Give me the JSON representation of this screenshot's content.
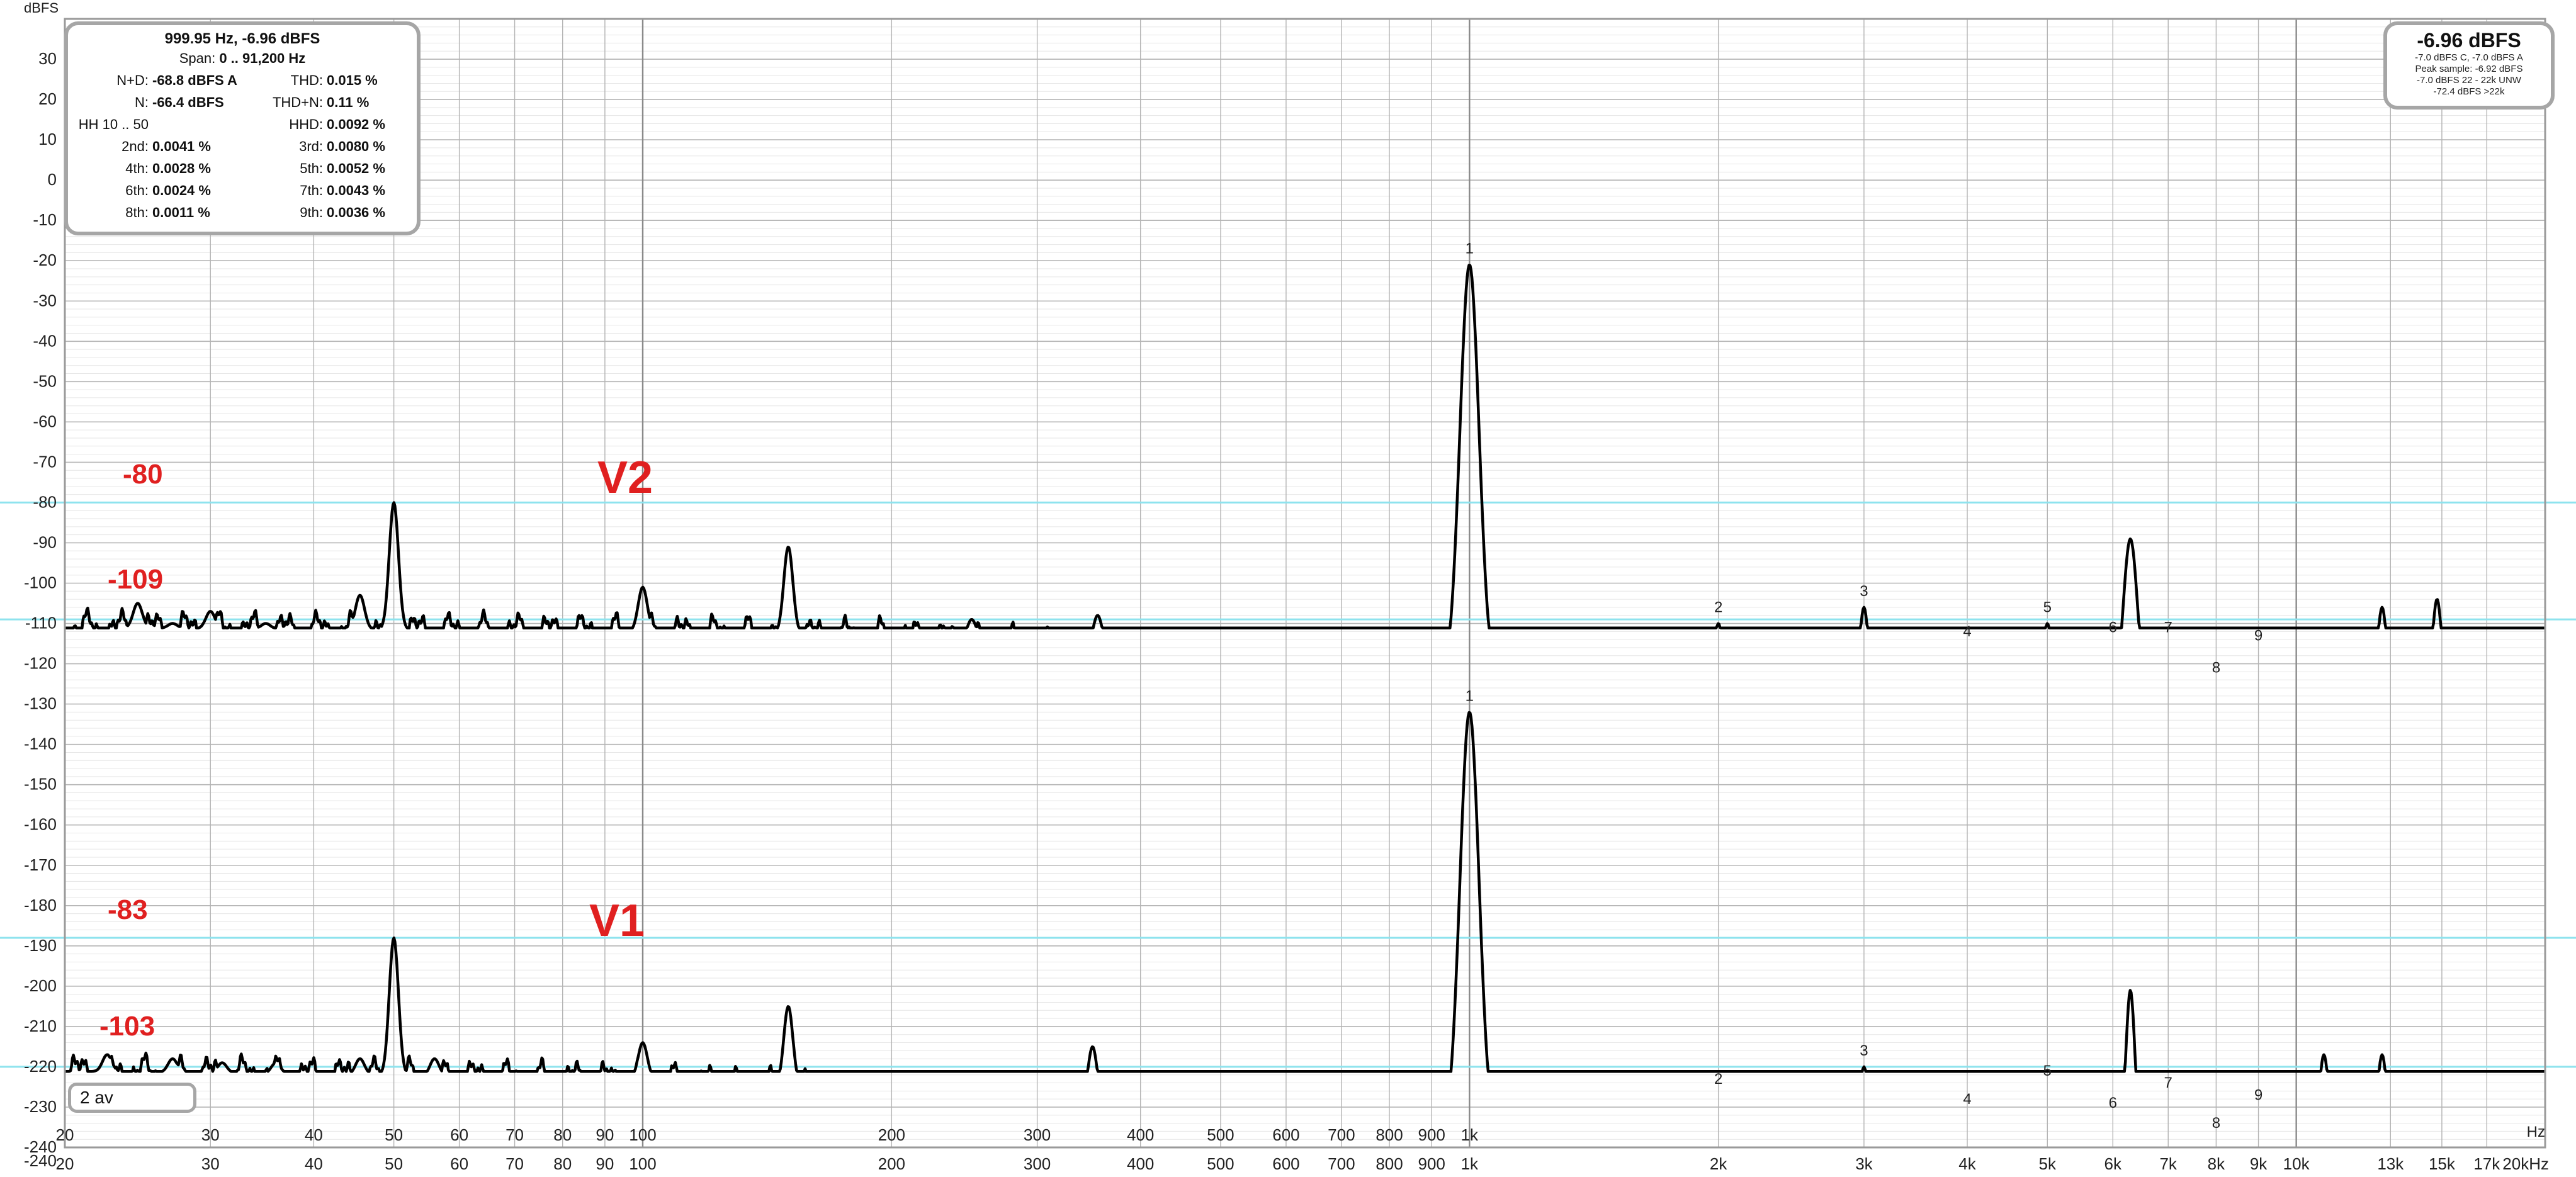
{
  "chart_data": {
    "type": "line",
    "xscale": "log",
    "xlim": [
      20,
      20000
    ],
    "ylim": [
      -240,
      40
    ],
    "y_unit_label": "dBFS",
    "x_unit_label": "Hz",
    "grid": true,
    "y_ticks": [
      30,
      20,
      10,
      0,
      -10,
      -20,
      -30,
      -40,
      -50,
      -60,
      -70,
      -80,
      -90,
      -100,
      -110,
      -120,
      -130,
      -140,
      -150,
      -160,
      -170,
      -180,
      -190,
      -200,
      -210,
      -220,
      -230,
      -240
    ],
    "x_ticks": [
      {
        "value": 20,
        "label": "20"
      },
      {
        "value": 30,
        "label": "30"
      },
      {
        "value": 40,
        "label": "40"
      },
      {
        "value": 50,
        "label": "50"
      },
      {
        "value": 60,
        "label": "60"
      },
      {
        "value": 70,
        "label": "70"
      },
      {
        "value": 80,
        "label": "80"
      },
      {
        "value": 90,
        "label": "90"
      },
      {
        "value": 100,
        "label": "100"
      },
      {
        "value": 200,
        "label": "200"
      },
      {
        "value": 300,
        "label": "300"
      },
      {
        "value": 400,
        "label": "400"
      },
      {
        "value": 500,
        "label": "500"
      },
      {
        "value": 600,
        "label": "600"
      },
      {
        "value": 700,
        "label": "700"
      },
      {
        "value": 800,
        "label": "800"
      },
      {
        "value": 900,
        "label": "900"
      },
      {
        "value": 1000,
        "label": "1k"
      },
      {
        "value": 2000,
        "label": "2k"
      },
      {
        "value": 3000,
        "label": "3k"
      },
      {
        "value": 4000,
        "label": "4k"
      },
      {
        "value": 5000,
        "label": "5k"
      },
      {
        "value": 6000,
        "label": "6k"
      },
      {
        "value": 7000,
        "label": "7k"
      },
      {
        "value": 8000,
        "label": "8k"
      },
      {
        "value": 9000,
        "label": "9k"
      },
      {
        "value": 10000,
        "label": "10k"
      },
      {
        "value": 13000,
        "label": "13k"
      },
      {
        "value": 15000,
        "label": "15k"
      },
      {
        "value": 17000,
        "label": "17k"
      },
      {
        "value": 20000,
        "label": "20kHz"
      }
    ],
    "reference_lines": [
      -80,
      -109,
      -188,
      -220
    ],
    "series": [
      {
        "name": "V2",
        "noise_floor": [
          [
            20,
            -111
          ],
          [
            100,
            -112
          ],
          [
            200,
            -113
          ],
          [
            300,
            -115
          ],
          [
            400,
            -117
          ],
          [
            500,
            -119
          ],
          [
            600,
            -120
          ],
          [
            700,
            -121
          ],
          [
            800,
            -122
          ],
          [
            900,
            -123
          ],
          [
            1000,
            -124
          ],
          [
            1500,
            -125
          ],
          [
            2000,
            -127
          ],
          [
            3000,
            -129
          ],
          [
            5000,
            -130
          ],
          [
            10000,
            -129
          ],
          [
            20000,
            -126
          ]
        ],
        "peaks": [
          [
            24.5,
            -105
          ],
          [
            27,
            -110
          ],
          [
            30,
            -107
          ],
          [
            35,
            -110
          ],
          [
            45.5,
            -103
          ],
          [
            50,
            -80
          ],
          [
            100,
            -101
          ],
          [
            150,
            -91
          ],
          [
            250,
            -109
          ],
          [
            355,
            -108
          ],
          [
            850,
            -119
          ],
          [
            1000,
            -21
          ],
          [
            2000,
            -110
          ],
          [
            3000,
            -106
          ],
          [
            4000,
            -116
          ],
          [
            5000,
            -110
          ],
          [
            6000,
            -115
          ],
          [
            6300,
            -89
          ],
          [
            7000,
            -115
          ],
          [
            8000,
            -125
          ],
          [
            9000,
            -117
          ],
          [
            11000,
            -120
          ],
          [
            12700,
            -106
          ],
          [
            14800,
            -104
          ],
          [
            17000,
            -121
          ],
          [
            19300,
            -116
          ]
        ],
        "peak_labels": [
          [
            1000,
            "1"
          ],
          [
            2000,
            "2"
          ],
          [
            3000,
            "3"
          ],
          [
            4000,
            "4"
          ],
          [
            5000,
            "5"
          ],
          [
            6000,
            "6"
          ],
          [
            7000,
            "7"
          ],
          [
            8000,
            "8"
          ],
          [
            9000,
            "9"
          ]
        ]
      },
      {
        "name": "V1",
        "noise_floor": [
          [
            20,
            -221
          ],
          [
            100,
            -223
          ],
          [
            200,
            -226
          ],
          [
            300,
            -228
          ],
          [
            400,
            -230
          ],
          [
            500,
            -232
          ],
          [
            600,
            -233
          ],
          [
            700,
            -234
          ],
          [
            800,
            -235
          ],
          [
            900,
            -236
          ],
          [
            1000,
            -237
          ],
          [
            1500,
            -238
          ],
          [
            2000,
            -240
          ],
          [
            3000,
            -242
          ],
          [
            5000,
            -242
          ],
          [
            10000,
            -238
          ],
          [
            20000,
            -238
          ]
        ],
        "peaks": [
          [
            22.5,
            -217
          ],
          [
            27,
            -218
          ],
          [
            31,
            -219
          ],
          [
            36,
            -219
          ],
          [
            45.5,
            -218
          ],
          [
            50,
            -188
          ],
          [
            56,
            -218
          ],
          [
            100,
            -214
          ],
          [
            150,
            -205
          ],
          [
            350,
            -215
          ],
          [
            650,
            -229
          ],
          [
            820,
            -228
          ],
          [
            1000,
            -132
          ],
          [
            2000,
            -227
          ],
          [
            3000,
            -220
          ],
          [
            4000,
            -232
          ],
          [
            5000,
            -225
          ],
          [
            6000,
            -233
          ],
          [
            6300,
            -201
          ],
          [
            7000,
            -228
          ],
          [
            8000,
            -238
          ],
          [
            9000,
            -231
          ],
          [
            10800,
            -217
          ],
          [
            12700,
            -217
          ],
          [
            17000,
            -234
          ],
          [
            19300,
            -227
          ]
        ],
        "peak_labels": [
          [
            1000,
            "1"
          ],
          [
            2000,
            "2"
          ],
          [
            3000,
            "3"
          ],
          [
            4000,
            "4"
          ],
          [
            5000,
            "5"
          ],
          [
            6000,
            "6"
          ],
          [
            7000,
            "7"
          ],
          [
            8000,
            "8"
          ],
          [
            9000,
            "9"
          ]
        ]
      }
    ],
    "annotations": [
      {
        "text": "V2",
        "x": 90,
        "y": -77
      },
      {
        "text": "-80",
        "x": 24,
        "y": -75
      },
      {
        "text": "-109",
        "x": 23,
        "y": -101
      },
      {
        "text": "V1",
        "x": 88,
        "y": -187
      },
      {
        "text": "-83",
        "x": 23,
        "y": -183
      },
      {
        "text": "-103",
        "x": 22.5,
        "y": -212
      }
    ]
  },
  "info_panel": {
    "headline": "999.95 Hz, -6.96 dBFS",
    "span_label": "Span:",
    "span_value": "0 .. 91,200 Hz",
    "rows": [
      {
        "k": "N+D:",
        "v": "-68.8 dBFS A"
      },
      {
        "k": "THD:",
        "v": "0.015 %"
      },
      {
        "k": "N:",
        "v": "-66.4 dBFS"
      },
      {
        "k": "THD+N:",
        "v": "0.11 %"
      },
      {
        "k": "HH 10 .. 50",
        "v": ""
      },
      {
        "k": "HHD:",
        "v": "0.0092 %"
      },
      {
        "k": "2nd:",
        "v": "0.0041 %"
      },
      {
        "k": "3rd:",
        "v": "0.0080 %"
      },
      {
        "k": "4th:",
        "v": "0.0028 %"
      },
      {
        "k": "5th:",
        "v": "0.0052 %"
      },
      {
        "k": "6th:",
        "v": "0.0024 %"
      },
      {
        "k": "7th:",
        "v": "0.0043 %"
      },
      {
        "k": "8th:",
        "v": "0.0011 %"
      },
      {
        "k": "9th:",
        "v": "0.0036 %"
      }
    ]
  },
  "level_panel": {
    "main": "-6.96 dBFS",
    "line1": "-7.0 dBFS C, -7.0 dBFS A",
    "line2": "Peak sample: -6.92 dBFS",
    "line3": "-7.0 dBFS 22 - 22k UNW",
    "line4": "-72.4 dBFS >22k"
  },
  "averages_label": "2 av",
  "colors": {
    "trace": "#000000",
    "reference_line": "#8ee3ee",
    "annotation": "#e02020",
    "grid_minor": "#e6e6e6",
    "grid_major": "#b4b4b4",
    "panel_border": "#a6a6a6"
  }
}
